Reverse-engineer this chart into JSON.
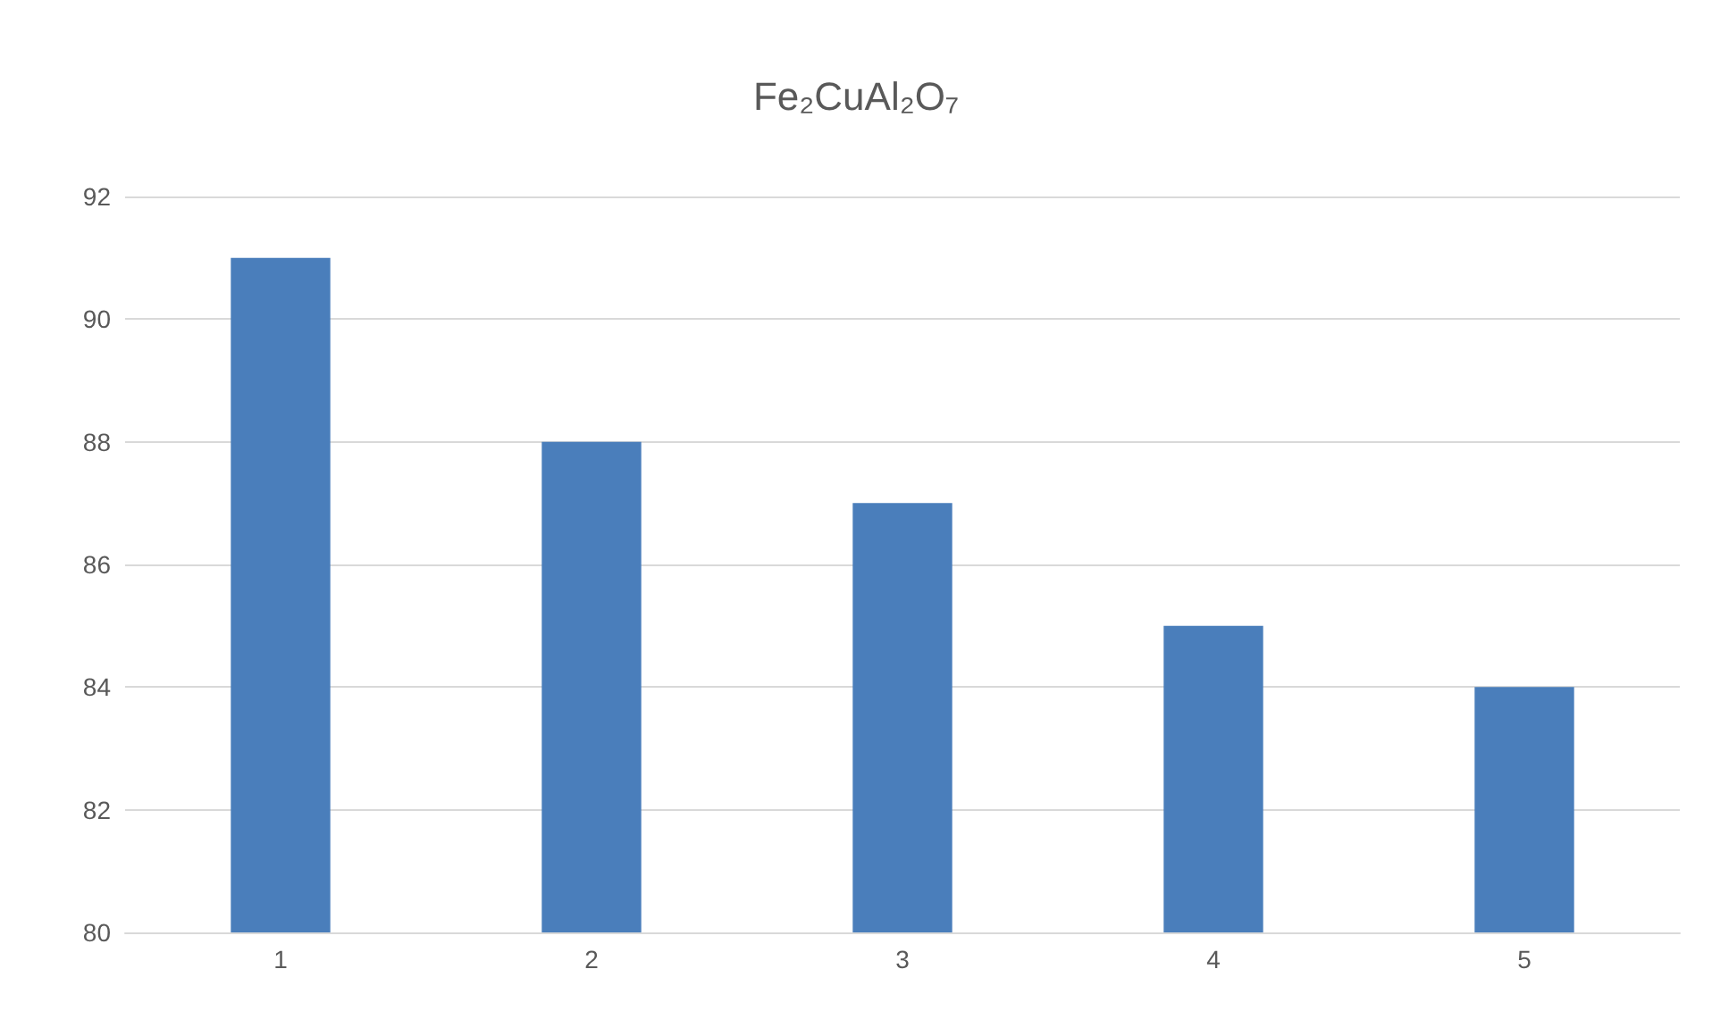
{
  "chart_data": {
    "type": "bar",
    "title": "Fe₂CuAl₂O₇",
    "categories": [
      "1",
      "2",
      "3",
      "4",
      "5"
    ],
    "values": [
      91,
      88,
      87,
      85,
      84
    ],
    "color": "#4a7ebb",
    "ylim": [
      80,
      92
    ],
    "yticks": [
      80,
      82,
      84,
      86,
      88,
      90,
      92
    ],
    "grid": "y"
  }
}
